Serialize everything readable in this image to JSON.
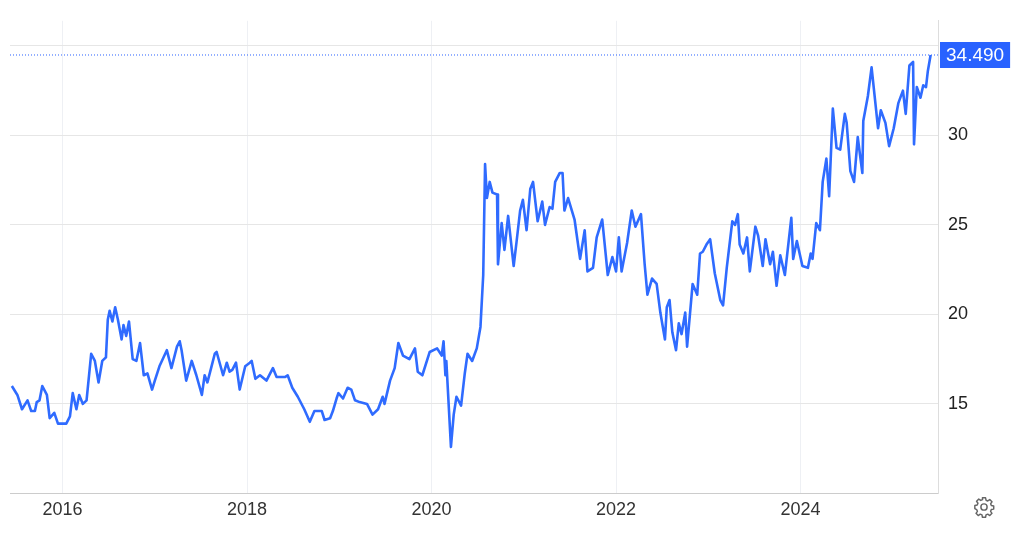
{
  "chart_data": {
    "type": "line",
    "x": [
      2015.45,
      2015.51,
      2015.56,
      2015.62,
      2015.66,
      2015.7,
      2015.72,
      2015.75,
      2015.78,
      2015.83,
      2015.86,
      2015.91,
      2015.95,
      2015.99,
      2016.04,
      2016.08,
      2016.11,
      2016.15,
      2016.18,
      2016.22,
      2016.26,
      2016.31,
      2016.35,
      2016.39,
      2016.43,
      2016.47,
      2016.49,
      2016.51,
      2016.54,
      2016.57,
      2016.6,
      2016.64,
      2016.66,
      2016.69,
      2016.72,
      2016.76,
      2016.8,
      2016.84,
      2016.88,
      2016.92,
      2016.97,
      2017.0,
      2017.05,
      2017.13,
      2017.18,
      2017.24,
      2017.27,
      2017.29,
      2017.34,
      2017.4,
      2017.45,
      2017.51,
      2017.54,
      2017.57,
      2017.61,
      2017.65,
      2017.67,
      2017.74,
      2017.78,
      2017.81,
      2017.84,
      2017.88,
      2017.92,
      2017.98,
      2018.03,
      2018.05,
      2018.09,
      2018.14,
      2018.21,
      2018.28,
      2018.32,
      2018.41,
      2018.44,
      2018.49,
      2018.55,
      2018.62,
      2018.68,
      2018.73,
      2018.81,
      2018.84,
      2018.9,
      2018.93,
      2018.97,
      2018.99,
      2019.04,
      2019.09,
      2019.13,
      2019.17,
      2019.22,
      2019.3,
      2019.36,
      2019.42,
      2019.47,
      2019.49,
      2019.55,
      2019.6,
      2019.64,
      2019.69,
      2019.76,
      2019.82,
      2019.85,
      2019.9,
      2019.98,
      2020.06,
      2020.11,
      2020.13,
      2020.15,
      2020.16,
      2020.21,
      2020.24,
      2020.27,
      2020.32,
      2020.36,
      2020.39,
      2020.44,
      2020.49,
      2020.53,
      2020.56,
      2020.58,
      2020.6,
      2020.63,
      2020.66,
      2020.71,
      2020.72,
      2020.76,
      2020.79,
      2020.83,
      2020.89,
      2020.92,
      2020.96,
      2020.99,
      2021.03,
      2021.07,
      2021.1,
      2021.15,
      2021.2,
      2021.23,
      2021.28,
      2021.31,
      2021.34,
      2021.39,
      2021.42,
      2021.44,
      2021.48,
      2021.55,
      2021.61,
      2021.66,
      2021.69,
      2021.75,
      2021.79,
      2021.85,
      2021.91,
      2021.96,
      2022.0,
      2022.03,
      2022.06,
      2022.12,
      2022.17,
      2022.21,
      2022.27,
      2022.31,
      2022.34,
      2022.39,
      2022.44,
      2022.48,
      2022.53,
      2022.55,
      2022.58,
      2022.61,
      2022.65,
      2022.68,
      2022.71,
      2022.75,
      2022.77,
      2022.83,
      2022.88,
      2022.91,
      2022.94,
      2022.98,
      2023.02,
      2023.07,
      2023.13,
      2023.16,
      2023.2,
      2023.26,
      2023.29,
      2023.32,
      2023.34,
      2023.38,
      2023.42,
      2023.45,
      2023.51,
      2023.54,
      2023.59,
      2023.62,
      2023.67,
      2023.7,
      2023.74,
      2023.78,
      2023.83,
      2023.9,
      2023.92,
      2023.96,
      2024.02,
      2024.08,
      2024.11,
      2024.13,
      2024.17,
      2024.21,
      2024.24,
      2024.28,
      2024.31,
      2024.35,
      2024.39,
      2024.43,
      2024.48,
      2024.5,
      2024.54,
      2024.58,
      2024.62,
      2024.67,
      2024.68,
      2024.73,
      2024.77,
      2024.84,
      2024.87,
      2024.92,
      2024.96,
      2025.01,
      2025.06,
      2025.11,
      2025.14,
      2025.18,
      2025.22,
      2025.23,
      2025.26,
      2025.3,
      2025.33,
      2025.36,
      2025.38,
      2025.41
    ],
    "series": [
      {
        "color": "#2f6bff",
        "values": [
          16.0,
          15.5,
          14.7,
          15.2,
          14.6,
          14.6,
          15.1,
          15.2,
          16.0,
          15.5,
          14.2,
          14.5,
          13.9,
          13.9,
          13.9,
          14.3,
          15.6,
          14.7,
          15.5,
          15.0,
          15.2,
          17.8,
          17.4,
          16.2,
          17.4,
          17.6,
          19.7,
          20.2,
          19.6,
          20.4,
          19.7,
          18.6,
          19.4,
          18.8,
          19.6,
          17.5,
          17.4,
          18.4,
          16.6,
          16.7,
          15.8,
          16.3,
          17.1,
          18.0,
          17.0,
          18.2,
          18.5,
          18.0,
          16.3,
          17.4,
          16.6,
          15.5,
          16.6,
          16.2,
          17.0,
          17.8,
          17.9,
          16.6,
          17.3,
          16.8,
          16.9,
          17.3,
          15.8,
          17.1,
          17.3,
          17.4,
          16.4,
          16.6,
          16.3,
          17.0,
          16.5,
          16.5,
          16.6,
          15.9,
          15.4,
          14.7,
          14.0,
          14.6,
          14.6,
          14.1,
          14.2,
          14.6,
          15.3,
          15.6,
          15.3,
          15.9,
          15.8,
          15.2,
          15.1,
          15.0,
          14.4,
          14.7,
          15.4,
          15.0,
          16.3,
          17.0,
          18.4,
          17.7,
          17.5,
          18.1,
          16.8,
          16.6,
          17.9,
          18.1,
          17.7,
          18.5,
          16.6,
          17.4,
          12.6,
          14.4,
          15.4,
          14.9,
          16.7,
          17.8,
          17.4,
          18.1,
          19.3,
          22.2,
          28.4,
          26.5,
          27.4,
          26.8,
          26.7,
          22.8,
          25.1,
          23.6,
          25.5,
          22.7,
          24.0,
          25.8,
          26.4,
          24.7,
          27.0,
          27.4,
          25.2,
          26.3,
          25.0,
          26.0,
          25.9,
          27.4,
          27.9,
          27.9,
          25.8,
          26.5,
          25.3,
          23.1,
          24.7,
          22.4,
          22.6,
          24.3,
          25.3,
          22.2,
          23.2,
          22.4,
          24.3,
          22.4,
          24.0,
          25.8,
          24.9,
          25.6,
          22.8,
          21.1,
          22.0,
          21.7,
          20.1,
          18.6,
          20.4,
          20.8,
          19.0,
          18.0,
          19.5,
          18.9,
          20.1,
          18.2,
          21.7,
          21.1,
          23.4,
          23.5,
          23.9,
          24.2,
          22.3,
          20.8,
          20.5,
          22.6,
          25.2,
          25.0,
          25.6,
          23.9,
          23.4,
          24.3,
          22.4,
          24.9,
          24.4,
          22.7,
          24.2,
          22.8,
          23.5,
          21.6,
          23.3,
          22.2,
          25.4,
          23.1,
          24.1,
          22.7,
          22.6,
          23.4,
          23.1,
          25.1,
          24.7,
          27.4,
          28.7,
          26.6,
          31.5,
          29.3,
          29.2,
          31.2,
          30.7,
          28.0,
          27.4,
          29.9,
          27.9,
          30.8,
          32.2,
          33.8,
          30.4,
          31.4,
          30.7,
          29.4,
          30.4,
          31.8,
          32.5,
          31.2,
          33.9,
          34.1,
          29.5,
          32.7,
          32.1,
          32.8,
          32.7,
          33.6,
          34.49
        ]
      }
    ],
    "xlim": [
      2015.43,
      2025.49
    ],
    "xticks": [
      2016,
      2018,
      2020,
      2022,
      2024
    ],
    "ylim": [
      10,
      36.4
    ],
    "yticks": [
      15,
      20,
      25,
      30,
      {
        "value": 35,
        "label": null
      }
    ],
    "grid": true,
    "ref_lines": [
      {
        "axis": "y",
        "value": 34.49,
        "label": "34.490",
        "color": "#2962ff",
        "line_style": "dotted"
      }
    ]
  }
}
